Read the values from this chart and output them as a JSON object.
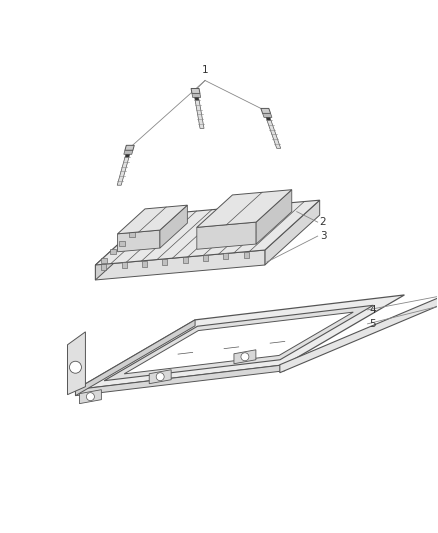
{
  "background_color": "#ffffff",
  "line_color": "#555555",
  "label_color": "#333333",
  "fig_width": 4.38,
  "fig_height": 5.33,
  "dpi": 100
}
